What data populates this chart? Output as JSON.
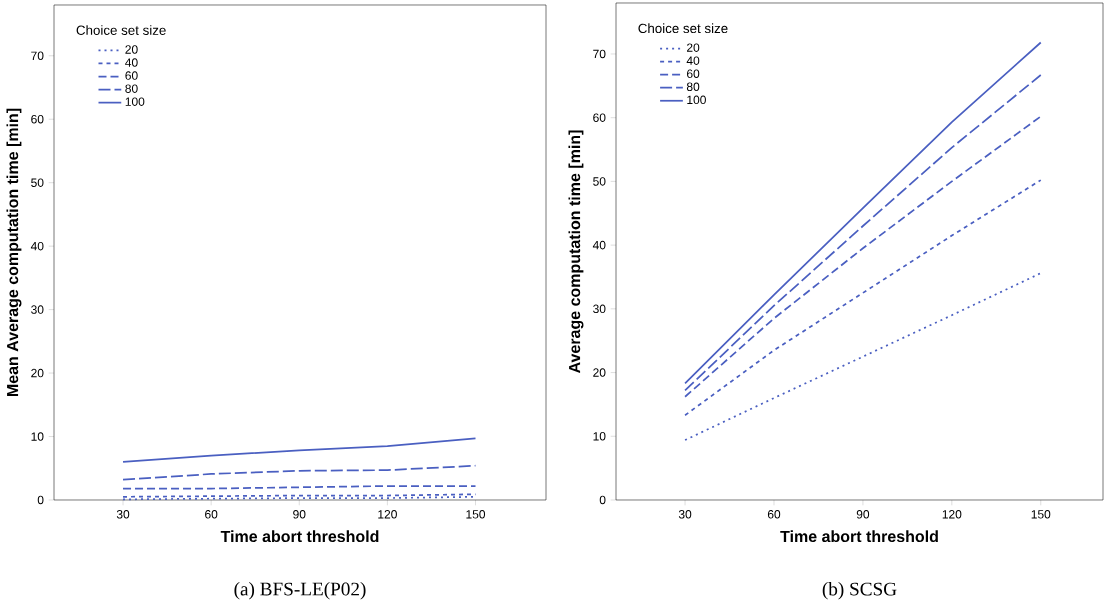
{
  "chart_data": [
    {
      "type": "line",
      "xlabel": "Time abort threshold",
      "ylabel": "Mean Average computation time [min]",
      "legend_title": "Choice set size",
      "annotations": [
        "(a)  BFS-LE(P02)"
      ],
      "x": [
        30,
        60,
        90,
        120,
        150
      ],
      "xlim": [
        6.5,
        174
      ],
      "ylim": [
        0,
        78
      ],
      "xticks": [
        30,
        60,
        90,
        120,
        150
      ],
      "yticks": [
        0,
        10,
        20,
        30,
        40,
        50,
        60,
        70
      ],
      "legend": "top left",
      "grid": false,
      "series": [
        {
          "name": "20",
          "color": "#4a5fc1",
          "line_style": "dotted",
          "values": [
            0.1,
            0.2,
            0.3,
            0.3,
            0.5
          ]
        },
        {
          "name": "40",
          "color": "#4a5fc1",
          "line_style": "dashed",
          "values": [
            0.5,
            0.6,
            0.7,
            0.7,
            0.9
          ]
        },
        {
          "name": "60",
          "color": "#4a5fc1",
          "line_style": "dashed",
          "values": [
            1.8,
            1.8,
            2.0,
            2.2,
            2.2
          ]
        },
        {
          "name": "80",
          "color": "#4a5fc1",
          "line_style": "dashed",
          "values": [
            3.2,
            4.1,
            4.6,
            4.7,
            5.4
          ]
        },
        {
          "name": "100",
          "color": "#4a5fc1",
          "line_style": "solid",
          "values": [
            6.0,
            7.0,
            7.8,
            8.5,
            9.7
          ]
        }
      ]
    },
    {
      "type": "line",
      "xlabel": "Time abort threshold",
      "ylabel": "Average computation time [min]",
      "legend_title": "Choice set size",
      "annotations": [
        "(b)  SCSG"
      ],
      "x": [
        30,
        60,
        90,
        120,
        150
      ],
      "xlim": [
        6.7,
        171
      ],
      "ylim": [
        0,
        78
      ],
      "xticks": [
        30,
        60,
        90,
        120,
        150
      ],
      "yticks": [
        0,
        10,
        20,
        30,
        40,
        50,
        60,
        70
      ],
      "legend": "top left",
      "grid": false,
      "series": [
        {
          "name": "20",
          "color": "#4a5fc1",
          "line_style": "dotted",
          "values": [
            9.4,
            16.0,
            22.5,
            29.0,
            35.6
          ]
        },
        {
          "name": "40",
          "color": "#4a5fc1",
          "line_style": "dashed",
          "values": [
            13.3,
            23.5,
            32.5,
            41.5,
            50.2
          ]
        },
        {
          "name": "60",
          "color": "#4a5fc1",
          "line_style": "dashed",
          "values": [
            16.2,
            28.5,
            39.5,
            50.0,
            60.2
          ]
        },
        {
          "name": "80",
          "color": "#4a5fc1",
          "line_style": "dashed",
          "values": [
            17.2,
            30.5,
            43.0,
            55.3,
            66.7
          ]
        },
        {
          "name": "100",
          "color": "#4a5fc1",
          "line_style": "solid",
          "values": [
            18.3,
            32.2,
            45.8,
            59.3,
            71.8
          ]
        }
      ]
    }
  ]
}
